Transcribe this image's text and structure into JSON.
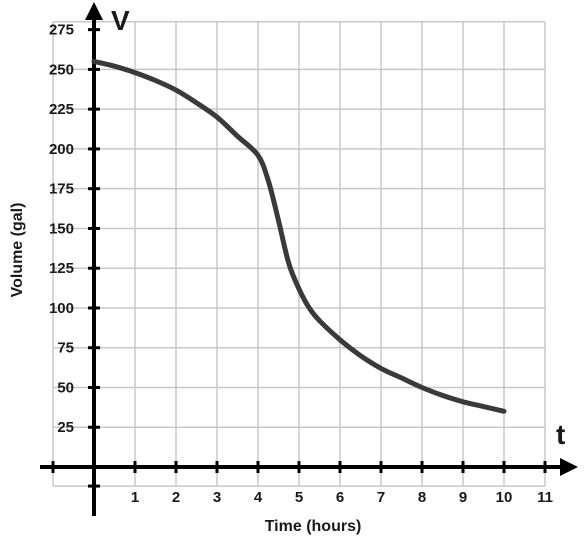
{
  "chart_data": {
    "type": "line",
    "title": "",
    "x_axis_letter": "t",
    "y_axis_letter": "V",
    "xlabel": "Time (hours)",
    "ylabel": "Volume (gal)",
    "xlim": [
      -1,
      12
    ],
    "ylim": [
      -12,
      285
    ],
    "x_tick_labels": [
      "1",
      "2",
      "3",
      "4",
      "5",
      "6",
      "7",
      "8",
      "9",
      "10",
      "11"
    ],
    "x_ticks": [
      1,
      2,
      3,
      4,
      5,
      6,
      7,
      8,
      9,
      10,
      11
    ],
    "y_tick_labels": [
      "25",
      "50",
      "75",
      "100",
      "125",
      "150",
      "175",
      "200",
      "225",
      "250",
      "275"
    ],
    "y_ticks": [
      25,
      50,
      75,
      100,
      125,
      150,
      175,
      200,
      225,
      250,
      275
    ],
    "grid": true,
    "series": [
      {
        "color": "#3a3a3a",
        "x": [
          0,
          0.5,
          1,
          1.5,
          2,
          2.5,
          3,
          3.5,
          4,
          4.25,
          4.5,
          4.75,
          5,
          5.25,
          5.5,
          6,
          6.5,
          7,
          7.5,
          8,
          8.5,
          9,
          9.5,
          10
        ],
        "y": [
          255,
          252,
          248,
          243,
          237,
          229,
          220,
          208,
          196,
          180,
          155,
          128,
          112,
          100,
          92,
          80,
          70,
          62,
          56,
          50,
          45,
          41,
          38,
          35
        ]
      }
    ]
  },
  "colors": {
    "grid": "#c8c8c8",
    "axis": "#000000",
    "curve": "#3a3a3a"
  }
}
